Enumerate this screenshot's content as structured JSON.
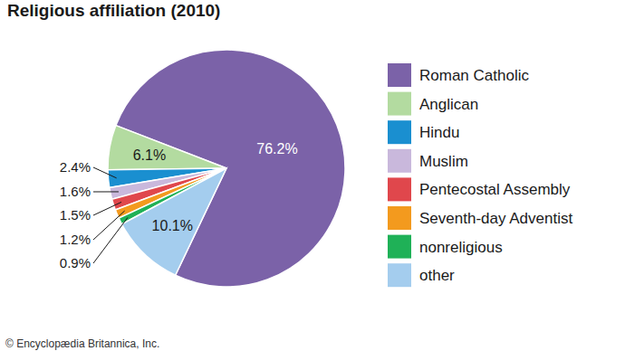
{
  "chart_data": {
    "type": "pie",
    "title": "Religious affiliation (2010)",
    "categories": [
      "Roman Catholic",
      "Anglican",
      "Hindu",
      "Muslim",
      "Pentecostal Assembly",
      "Seventh-day Adventist",
      "nonreligious",
      "other"
    ],
    "values": [
      76.2,
      6.1,
      2.4,
      1.6,
      1.5,
      1.2,
      0.9,
      10.1
    ],
    "value_labels": [
      "76.2%",
      "6.1%",
      "2.4%",
      "1.6%",
      "1.5%",
      "1.2%",
      "0.9%",
      "10.1%"
    ],
    "colors": [
      "#7b62a8",
      "#b3dba0",
      "#1a8fd0",
      "#c9b8dc",
      "#e0474c",
      "#f39a1e",
      "#1fb157",
      "#a4cdee"
    ],
    "data_labels": true,
    "legend": "right",
    "source": "© Encyclopædia Britannica, Inc."
  }
}
